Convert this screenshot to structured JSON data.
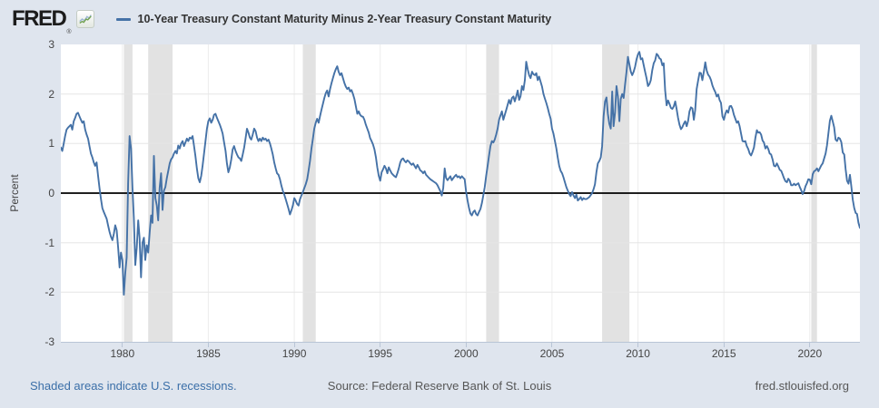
{
  "header": {
    "brand": "FRED",
    "registered_mark": "®"
  },
  "footer": {
    "recession_note": "Shaded areas indicate U.S. recessions.",
    "source": "Source: Federal Reserve Bank of St. Louis",
    "site": "fred.stlouisfed.org"
  },
  "colors": {
    "background": "#dfe5ee",
    "plot_bg": "#ffffff",
    "line": "#4572a7",
    "zero_line": "#000000",
    "gridline": "#e5e5e5",
    "vgridline": "#ececec",
    "recession": "#e2e2e2",
    "axis": "#b9c5d6",
    "tick_text": "#444444",
    "link": "#3b6fa8",
    "muted_text": "#565656"
  },
  "chart_data": {
    "type": "line",
    "title": "10-Year Treasury Constant Maturity Minus 2-Year Treasury Constant Maturity",
    "xlabel": "",
    "ylabel": "Percent",
    "ylim": [
      -3,
      3
    ],
    "grid": true,
    "legend_position": "top",
    "frequency": "monthly",
    "start": {
      "year": 1976,
      "month": 6
    },
    "end": {
      "year": 2022,
      "month": 12
    },
    "x_tick_years": [
      1980,
      1985,
      1990,
      1995,
      2000,
      2005,
      2010,
      2015,
      2020
    ],
    "y_ticks": [
      3,
      2,
      1,
      0,
      -1,
      -2,
      -3
    ],
    "recessions": [
      {
        "start": 1980.083,
        "end": 1980.583
      },
      {
        "start": 1981.5,
        "end": 1982.917
      },
      {
        "start": 1990.5,
        "end": 1991.25
      },
      {
        "start": 2001.167,
        "end": 2001.917
      },
      {
        "start": 2007.917,
        "end": 2009.5
      },
      {
        "start": 2020.083,
        "end": 2020.417
      }
    ],
    "series": [
      {
        "name": "10-Year Treasury Constant Maturity Minus 2-Year Treasury Constant Maturity",
        "color": "#4572a7",
        "values": [
          0.92,
          0.85,
          1.0,
          1.15,
          1.28,
          1.32,
          1.35,
          1.38,
          1.28,
          1.45,
          1.52,
          1.6,
          1.62,
          1.55,
          1.48,
          1.42,
          1.45,
          1.28,
          1.18,
          1.1,
          0.95,
          0.8,
          0.72,
          0.62,
          0.55,
          0.62,
          0.35,
          0.1,
          -0.12,
          -0.3,
          -0.38,
          -0.45,
          -0.52,
          -0.65,
          -0.78,
          -0.88,
          -0.95,
          -0.82,
          -0.65,
          -0.75,
          -1.1,
          -1.5,
          -1.2,
          -1.35,
          -2.05,
          -1.6,
          -1.3,
          0.2,
          1.15,
          0.9,
          0.1,
          -0.5,
          -1.45,
          -1.1,
          -0.55,
          -0.9,
          -1.7,
          -1.0,
          -0.9,
          -1.35,
          -1.05,
          -1.2,
          -0.8,
          -0.45,
          -0.6,
          0.75,
          -0.1,
          -0.25,
          -0.55,
          0.1,
          0.4,
          -0.34,
          0.05,
          0.12,
          0.3,
          0.45,
          0.6,
          0.68,
          0.72,
          0.8,
          0.85,
          0.8,
          0.96,
          0.9,
          1.0,
          1.05,
          0.95,
          1.02,
          1.1,
          1.05,
          1.12,
          1.1,
          1.15,
          0.95,
          0.75,
          0.5,
          0.3,
          0.22,
          0.35,
          0.55,
          0.8,
          1.05,
          1.3,
          1.45,
          1.51,
          1.42,
          1.48,
          1.58,
          1.6,
          1.52,
          1.45,
          1.38,
          1.3,
          1.2,
          1.02,
          0.85,
          0.6,
          0.42,
          0.52,
          0.68,
          0.88,
          0.95,
          0.85,
          0.78,
          0.72,
          0.7,
          0.65,
          0.78,
          0.92,
          1.1,
          1.3,
          1.22,
          1.12,
          1.08,
          1.18,
          1.3,
          1.25,
          1.12,
          1.05,
          1.1,
          1.05,
          1.12,
          1.08,
          1.1,
          1.05,
          1.08,
          1.0,
          0.9,
          0.78,
          0.62,
          0.5,
          0.4,
          0.37,
          0.28,
          0.15,
          0.05,
          -0.03,
          -0.12,
          -0.22,
          -0.32,
          -0.43,
          -0.35,
          -0.25,
          -0.1,
          -0.15,
          -0.22,
          -0.25,
          -0.12,
          -0.05,
          0.02,
          0.1,
          0.18,
          0.28,
          0.45,
          0.65,
          0.9,
          1.1,
          1.3,
          1.42,
          1.5,
          1.42,
          1.55,
          1.68,
          1.8,
          1.92,
          2.02,
          2.07,
          1.95,
          2.1,
          2.22,
          2.32,
          2.42,
          2.5,
          2.56,
          2.45,
          2.38,
          2.42,
          2.32,
          2.22,
          2.15,
          2.1,
          2.13,
          2.05,
          2.08,
          2.0,
          1.9,
          1.75,
          1.6,
          1.65,
          1.58,
          1.55,
          1.54,
          1.48,
          1.38,
          1.3,
          1.22,
          1.11,
          1.05,
          0.98,
          0.88,
          0.72,
          0.52,
          0.35,
          0.25,
          0.42,
          0.48,
          0.55,
          0.5,
          0.4,
          0.52,
          0.46,
          0.4,
          0.37,
          0.34,
          0.32,
          0.4,
          0.5,
          0.62,
          0.68,
          0.7,
          0.65,
          0.62,
          0.66,
          0.64,
          0.6,
          0.57,
          0.6,
          0.55,
          0.5,
          0.57,
          0.52,
          0.46,
          0.44,
          0.4,
          0.44,
          0.37,
          0.34,
          0.31,
          0.28,
          0.26,
          0.24,
          0.22,
          0.2,
          0.16,
          0.1,
          0.04,
          -0.05,
          0.1,
          0.5,
          0.31,
          0.26,
          0.3,
          0.34,
          0.26,
          0.3,
          0.34,
          0.37,
          0.32,
          0.34,
          0.3,
          0.34,
          0.31,
          0.28,
          0.03,
          -0.15,
          -0.3,
          -0.41,
          -0.45,
          -0.38,
          -0.35,
          -0.42,
          -0.45,
          -0.38,
          -0.32,
          -0.2,
          -0.05,
          0.12,
          0.35,
          0.55,
          0.75,
          0.95,
          1.05,
          1.02,
          1.08,
          1.18,
          1.3,
          1.48,
          1.57,
          1.65,
          1.48,
          1.58,
          1.68,
          1.78,
          1.88,
          1.8,
          1.92,
          1.95,
          1.85,
          1.95,
          2.07,
          1.88,
          1.95,
          2.16,
          2.08,
          2.28,
          2.65,
          2.5,
          2.38,
          2.32,
          2.45,
          2.4,
          2.38,
          2.42,
          2.28,
          2.35,
          2.25,
          2.15,
          2.0,
          1.91,
          1.82,
          1.72,
          1.6,
          1.5,
          1.3,
          1.2,
          1.05,
          0.9,
          0.72,
          0.55,
          0.45,
          0.4,
          0.32,
          0.22,
          0.12,
          0.05,
          -0.02,
          -0.06,
          0.02,
          -0.05,
          -0.1,
          -0.03,
          -0.15,
          -0.12,
          -0.08,
          -0.14,
          -0.1,
          -0.12,
          -0.12,
          -0.1,
          -0.08,
          -0.04,
          0,
          0.08,
          0.18,
          0.42,
          0.6,
          0.65,
          0.72,
          0.95,
          1.55,
          1.85,
          1.93,
          1.6,
          1.4,
          1.3,
          2.05,
          1.35,
          1.62,
          2.16,
          1.95,
          1.45,
          1.9,
          2.0,
          1.92,
          2.2,
          2.44,
          2.75,
          2.6,
          2.45,
          2.38,
          2.45,
          2.55,
          2.7,
          2.8,
          2.85,
          2.7,
          2.72,
          2.58,
          2.45,
          2.32,
          2.16,
          2.2,
          2.28,
          2.48,
          2.62,
          2.68,
          2.81,
          2.78,
          2.72,
          2.7,
          2.58,
          2.62,
          2.07,
          1.77,
          1.87,
          1.8,
          1.72,
          1.7,
          1.75,
          1.85,
          1.7,
          1.52,
          1.38,
          1.29,
          1.33,
          1.4,
          1.45,
          1.35,
          1.46,
          1.65,
          1.73,
          1.71,
          1.48,
          1.68,
          2.1,
          2.27,
          2.43,
          2.42,
          2.28,
          2.45,
          2.64,
          2.47,
          2.39,
          2.35,
          2.28,
          2.17,
          2.1,
          2.04,
          1.95,
          1.99,
          1.88,
          1.82,
          1.55,
          1.48,
          1.6,
          1.67,
          1.62,
          1.75,
          1.76,
          1.7,
          1.58,
          1.5,
          1.42,
          1.45,
          1.35,
          1.2,
          1.05,
          1.04,
          1.05,
          0.95,
          0.89,
          0.8,
          0.76,
          0.83,
          0.92,
          1.12,
          1.27,
          1.22,
          1.23,
          1.18,
          1.06,
          1.02,
          0.9,
          0.95,
          0.89,
          0.8,
          0.78,
          0.68,
          0.55,
          0.54,
          0.6,
          0.54,
          0.47,
          0.45,
          0.38,
          0.3,
          0.24,
          0.22,
          0.29,
          0.25,
          0.16,
          0.16,
          0.19,
          0.16,
          0.18,
          0.2,
          0.12,
          0.06,
          -0.02,
          0.04,
          0.14,
          0.2,
          0.28,
          0.27,
          0.18,
          0.38,
          0.44,
          0.46,
          0.5,
          0.44,
          0.5,
          0.56,
          0.6,
          0.7,
          0.8,
          0.96,
          1.21,
          1.46,
          1.56,
          1.45,
          1.33,
          1.08,
          1.05,
          1.12,
          1.1,
          1.03,
          0.82,
          0.78,
          0.49,
          0.25,
          0.19,
          0.37,
          0.14,
          -0.13,
          -0.3,
          -0.4,
          -0.42,
          -0.6,
          -0.7
        ]
      }
    ]
  }
}
